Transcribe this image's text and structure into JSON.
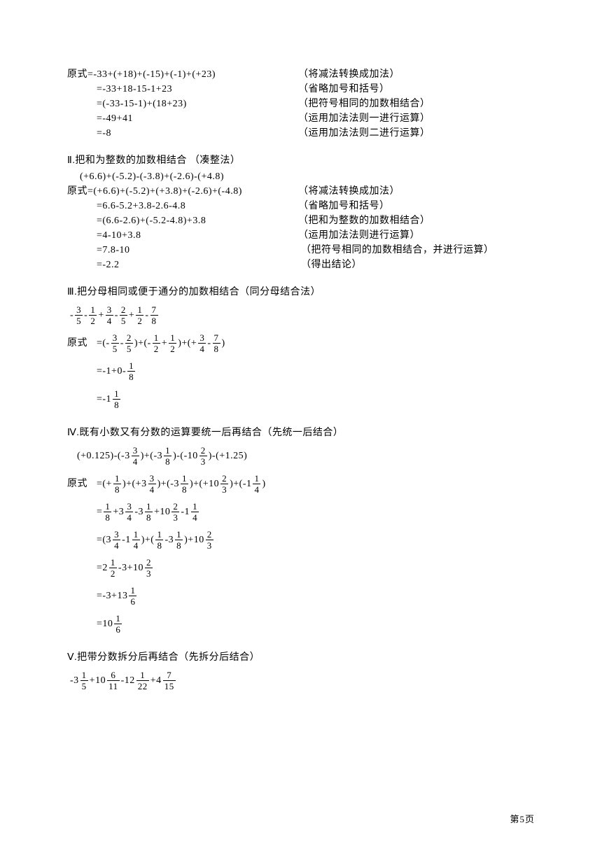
{
  "colors": {
    "text": "#000000",
    "bg": "#ffffff"
  },
  "typography": {
    "font_family": "SimSun",
    "base_size_pt": 10,
    "line_height": 1.5
  },
  "block1": {
    "rows": [
      {
        "lhs": "原式=-33+(+18)+(-15)+(-1)+(+23)",
        "rhs": "（将减法转换成加法）",
        "indent": false
      },
      {
        "lhs": "=-33+18-15-1+23",
        "rhs": "（省略加号和括号）",
        "indent": true
      },
      {
        "lhs": "=(-33-15-1)+(18+23)",
        "rhs": "（把符号相同的加数相结合）",
        "indent": true
      },
      {
        "lhs": "=-49+41",
        "rhs": "（运用加法法则一进行运算）",
        "indent": true
      },
      {
        "lhs": "=-8",
        "rhs": "（运用加法法则二进行运算）",
        "indent": true
      }
    ]
  },
  "block2": {
    "title": "Ⅱ.把和为整数的加数相结合 （凑整法）",
    "given": "(+6.6)+(-5.2)-(-3.8)+(-2.6)-(+4.8)",
    "rows": [
      {
        "lhs": "原式=(+6.6)+(-5.2)+(+3.8)+(-2.6)+(-4.8)",
        "rhs": "（将减法转换成加法）",
        "indent": false
      },
      {
        "lhs": "=6.6-5.2+3.8-2.6-4.8",
        "rhs": "（省略加号和括号）",
        "indent": true
      },
      {
        "lhs": "=(6.6-2.6)+(-5.2-4.8)+3.8",
        "rhs": "（把和为整数的加数相结合）",
        "indent": true
      },
      {
        "lhs": "=4-10+3.8",
        "rhs": "（运用加法法则进行运算）",
        "indent": true
      },
      {
        "lhs": "=7.8-10",
        "rhs": " （把符号相同的加数相结合，并进行运算）",
        "indent": true
      },
      {
        "lhs": "=-2.2",
        "rhs": " （得出结论）",
        "indent": true
      }
    ]
  },
  "block3": {
    "title": "Ⅲ.把分母相同或便于通分的加数相结合（同分母结合法）",
    "given_tokens": [
      {
        "t": "txt",
        "v": "-"
      },
      {
        "t": "frac",
        "n": "3",
        "d": "5"
      },
      {
        "t": "txt",
        "v": "-"
      },
      {
        "t": "frac",
        "n": "1",
        "d": "2"
      },
      {
        "t": "txt",
        "v": "+"
      },
      {
        "t": "frac",
        "n": "3",
        "d": "4"
      },
      {
        "t": "txt",
        "v": "-"
      },
      {
        "t": "frac",
        "n": "2",
        "d": "5"
      },
      {
        "t": "txt",
        "v": "+"
      },
      {
        "t": "frac",
        "n": "1",
        "d": "2"
      },
      {
        "t": "txt",
        "v": "-"
      },
      {
        "t": "frac",
        "n": "7",
        "d": "8"
      }
    ],
    "rows": [
      {
        "prefix": "原式",
        "tokens": [
          {
            "t": "txt",
            "v": "=(-"
          },
          {
            "t": "frac",
            "n": "3",
            "d": "5"
          },
          {
            "t": "txt",
            "v": "-"
          },
          {
            "t": "frac",
            "n": "2",
            "d": "5"
          },
          {
            "t": "txt",
            "v": ")+(-"
          },
          {
            "t": "frac",
            "n": "1",
            "d": "2"
          },
          {
            "t": "txt",
            "v": "+"
          },
          {
            "t": "frac",
            "n": "1",
            "d": "2"
          },
          {
            "t": "txt",
            "v": ")+(+"
          },
          {
            "t": "frac",
            "n": "3",
            "d": "4"
          },
          {
            "t": "txt",
            "v": "-"
          },
          {
            "t": "frac",
            "n": "7",
            "d": "8"
          },
          {
            "t": "txt",
            "v": ")"
          }
        ]
      },
      {
        "prefix": "",
        "tokens": [
          {
            "t": "txt",
            "v": "=-1+0-"
          },
          {
            "t": "frac",
            "n": "1",
            "d": "8"
          }
        ]
      },
      {
        "prefix": "",
        "tokens": [
          {
            "t": "txt",
            "v": "=-1"
          },
          {
            "t": "frac",
            "n": "1",
            "d": "8"
          }
        ]
      }
    ]
  },
  "block4": {
    "title": "Ⅳ.既有小数又有分数的运算要统一后再结合（先统一后结合）",
    "given_tokens": [
      {
        "t": "txt",
        "v": "(+0.125)-(-3"
      },
      {
        "t": "frac",
        "n": "3",
        "d": "4"
      },
      {
        "t": "txt",
        "v": ")+(-3"
      },
      {
        "t": "frac",
        "n": "1",
        "d": "8"
      },
      {
        "t": "txt",
        "v": ")-(-10"
      },
      {
        "t": "frac",
        "n": "2",
        "d": "3"
      },
      {
        "t": "txt",
        "v": ")-(+1.25)"
      }
    ],
    "rows": [
      {
        "prefix": "原式",
        "tokens": [
          {
            "t": "txt",
            "v": "=(+"
          },
          {
            "t": "frac",
            "n": "1",
            "d": "8"
          },
          {
            "t": "txt",
            "v": ")+(+3"
          },
          {
            "t": "frac",
            "n": "3",
            "d": "4"
          },
          {
            "t": "txt",
            "v": ")+(-3"
          },
          {
            "t": "frac",
            "n": "1",
            "d": "8"
          },
          {
            "t": "txt",
            "v": ")+(+10"
          },
          {
            "t": "frac",
            "n": "2",
            "d": "3"
          },
          {
            "t": "txt",
            "v": ")+(-1"
          },
          {
            "t": "frac",
            "n": "1",
            "d": "4"
          },
          {
            "t": "txt",
            "v": ")"
          }
        ]
      },
      {
        "prefix": "",
        "tokens": [
          {
            "t": "txt",
            "v": "="
          },
          {
            "t": "frac",
            "n": "1",
            "d": "8"
          },
          {
            "t": "txt",
            "v": "+3"
          },
          {
            "t": "frac",
            "n": "3",
            "d": "4"
          },
          {
            "t": "txt",
            "v": "-3"
          },
          {
            "t": "frac",
            "n": "1",
            "d": "8"
          },
          {
            "t": "txt",
            "v": "+10"
          },
          {
            "t": "frac",
            "n": "2",
            "d": "3"
          },
          {
            "t": "txt",
            "v": "-1"
          },
          {
            "t": "frac",
            "n": "1",
            "d": "4"
          }
        ]
      },
      {
        "prefix": "",
        "tokens": [
          {
            "t": "txt",
            "v": "=(3"
          },
          {
            "t": "frac",
            "n": "3",
            "d": "4"
          },
          {
            "t": "txt",
            "v": "-1"
          },
          {
            "t": "frac",
            "n": "1",
            "d": "4"
          },
          {
            "t": "txt",
            "v": ")+("
          },
          {
            "t": "frac",
            "n": "1",
            "d": "8"
          },
          {
            "t": "txt",
            "v": "-3"
          },
          {
            "t": "frac",
            "n": "1",
            "d": "8"
          },
          {
            "t": "txt",
            "v": ")+10"
          },
          {
            "t": "frac",
            "n": "2",
            "d": "3"
          }
        ]
      },
      {
        "prefix": "",
        "tokens": [
          {
            "t": "txt",
            "v": "=2"
          },
          {
            "t": "frac",
            "n": "1",
            "d": "2"
          },
          {
            "t": "txt",
            "v": "-3+10"
          },
          {
            "t": "frac",
            "n": "2",
            "d": "3"
          }
        ]
      },
      {
        "prefix": "",
        "tokens": [
          {
            "t": "txt",
            "v": "=-3+13"
          },
          {
            "t": "frac",
            "n": "1",
            "d": "6"
          }
        ]
      },
      {
        "prefix": "",
        "tokens": [
          {
            "t": "txt",
            "v": "=10"
          },
          {
            "t": "frac",
            "n": "1",
            "d": "6"
          }
        ]
      }
    ]
  },
  "block5": {
    "title": "Ⅴ.把带分数拆分后再结合（先拆分后结合）",
    "given_tokens": [
      {
        "t": "txt",
        "v": "-3"
      },
      {
        "t": "frac",
        "n": "1",
        "d": "5"
      },
      {
        "t": "txt",
        "v": "+10"
      },
      {
        "t": "frac",
        "n": "6",
        "d": "11"
      },
      {
        "t": "txt",
        "v": "-12"
      },
      {
        "t": "frac",
        "n": "1",
        "d": "22"
      },
      {
        "t": "txt",
        "v": "+4"
      },
      {
        "t": "frac",
        "n": "7",
        "d": "15"
      }
    ]
  },
  "footer": "第5页"
}
